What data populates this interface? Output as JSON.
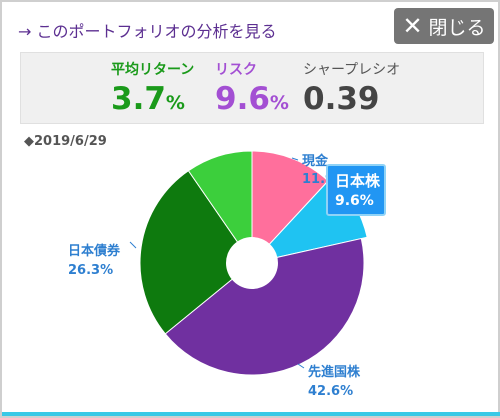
{
  "header": {
    "analysis_link": "→ このポートフォリオの分析を見る",
    "close_label": "閉じる"
  },
  "metrics": {
    "return": {
      "label": "平均リターン",
      "value": "3.7",
      "unit": "%"
    },
    "risk": {
      "label": "リスク",
      "value": "9.6",
      "unit": "%"
    },
    "sharpe": {
      "label": "シャープレシオ",
      "value": "0.39"
    }
  },
  "chart_date": "◆2019/6/29",
  "tooltip": {
    "name": "日本株",
    "value": "9.6%"
  },
  "colors": {
    "brand_purple": "#5c2f91",
    "close_gray": "#757575",
    "label_blue": "#2e7fd0",
    "accent_cyan": "#38c9e6"
  },
  "chart_data": {
    "type": "pie",
    "donut": true,
    "date": "2019/6/29",
    "highlighted": "日本株",
    "slices": [
      {
        "name": "現金",
        "value_label": "11.9",
        "color": "#ff6f9c"
      },
      {
        "name": "日本株",
        "value": 9.6,
        "value_label": "9.6%",
        "color": "#1fc3f2"
      },
      {
        "name": "先進国株",
        "value": 42.6,
        "value_label": "42.6%",
        "color": "#7030a0"
      },
      {
        "name": "日本債券",
        "value": 26.3,
        "value_label": "26.3%",
        "color": "#0e7a0e"
      },
      {
        "name": "",
        "value": 9.6,
        "color": "#3ccf3c"
      }
    ]
  }
}
